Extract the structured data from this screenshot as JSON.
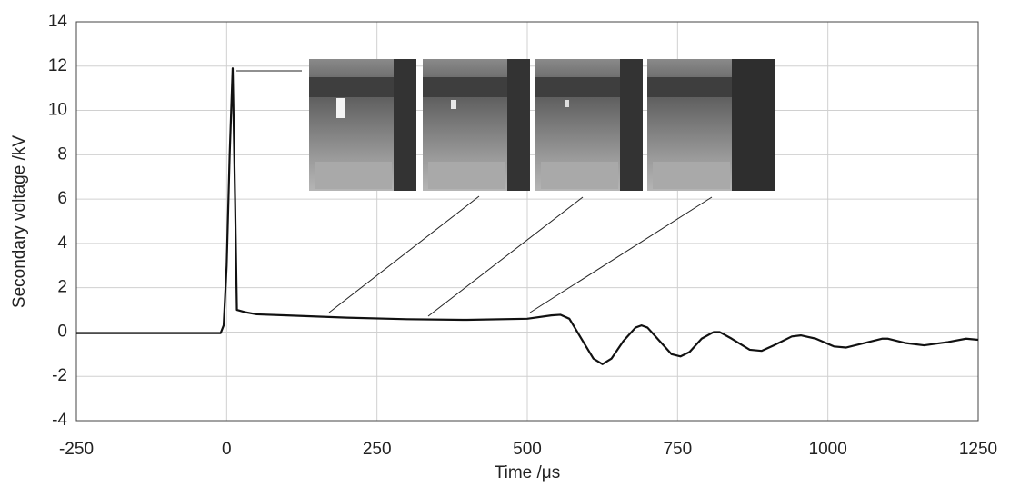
{
  "chart_data": {
    "type": "line",
    "xlabel": "Time /μs",
    "ylabel": "Secondary voltage /kV",
    "x": [
      -250,
      -10,
      -5,
      0,
      5,
      10,
      14,
      17,
      30,
      50,
      100,
      200,
      300,
      400,
      500,
      540,
      555,
      570,
      590,
      610,
      625,
      640,
      660,
      680,
      690,
      700,
      720,
      740,
      755,
      770,
      790,
      810,
      820,
      840,
      870,
      890,
      910,
      940,
      955,
      980,
      1010,
      1030,
      1060,
      1090,
      1100,
      1130,
      1160,
      1200,
      1230,
      1250
    ],
    "values": [
      -0.05,
      -0.05,
      0.3,
      3,
      8,
      11.9,
      6,
      1.0,
      0.9,
      0.8,
      0.75,
      0.65,
      0.58,
      0.55,
      0.6,
      0.75,
      0.78,
      0.6,
      -0.3,
      -1.2,
      -1.45,
      -1.2,
      -0.4,
      0.2,
      0.3,
      0.2,
      -0.4,
      -1.0,
      -1.1,
      -0.9,
      -0.3,
      0.0,
      0.0,
      -0.3,
      -0.8,
      -0.85,
      -0.6,
      -0.2,
      -0.15,
      -0.3,
      -0.65,
      -0.7,
      -0.5,
      -0.3,
      -0.3,
      -0.5,
      -0.6,
      -0.45,
      -0.3,
      -0.35
    ],
    "color": "#111111",
    "xlim": [
      -250,
      1250
    ],
    "xticks": [
      -250,
      0,
      250,
      500,
      750,
      1000,
      1250
    ],
    "ylim": [
      -4,
      14
    ],
    "yticks": [
      -4,
      -2,
      0,
      2,
      4,
      6,
      8,
      10,
      12,
      14
    ],
    "grid": true
  }
}
